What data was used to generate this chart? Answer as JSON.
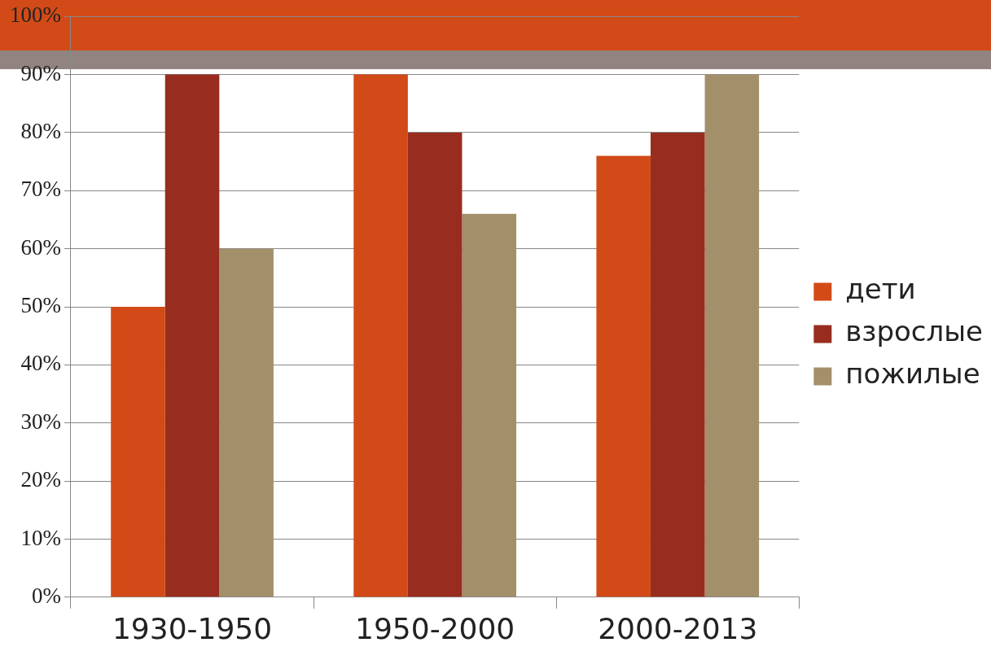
{
  "chart_data": {
    "type": "bar",
    "categories": [
      "1930-1950",
      "1950-2000",
      "2000-2013"
    ],
    "series": [
      {
        "name": "дети",
        "color": "#d24a17",
        "values": [
          50,
          90,
          76
        ]
      },
      {
        "name": "взрослые",
        "color": "#982d1f",
        "values": [
          90,
          80,
          80
        ]
      },
      {
        "name": "пожилые",
        "color": "#a38f6a",
        "values": [
          60,
          66,
          90
        ]
      }
    ],
    "ylim": [
      0,
      100
    ],
    "yticks": [
      {
        "value": 0,
        "label": "0%"
      },
      {
        "value": 10,
        "label": "10%"
      },
      {
        "value": 20,
        "label": "20%"
      },
      {
        "value": 30,
        "label": "30%"
      },
      {
        "value": 40,
        "label": "40%"
      },
      {
        "value": 50,
        "label": "50%"
      },
      {
        "value": 60,
        "label": "60%"
      },
      {
        "value": 70,
        "label": "70%"
      },
      {
        "value": 80,
        "label": "80%"
      },
      {
        "value": 90,
        "label": "90%"
      },
      {
        "value": 100,
        "label": "100%"
      }
    ],
    "grid": "y",
    "legend": "right"
  }
}
